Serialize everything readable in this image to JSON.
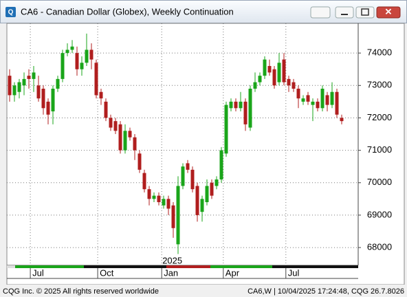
{
  "window_title": "CA6 - Canadian Dollar (Globex), Weekly Continuation",
  "chart_data": {
    "type": "candlestick",
    "categories": [
      null,
      null,
      null,
      null,
      null,
      null,
      null,
      null,
      null,
      null,
      null,
      null,
      null,
      null,
      null,
      null,
      null,
      null,
      null,
      null,
      null,
      null,
      null,
      null,
      null,
      null,
      null,
      null,
      null,
      null,
      null,
      null,
      null,
      null,
      null,
      null,
      null,
      null,
      null,
      null,
      null,
      null,
      null,
      null,
      null,
      null,
      null,
      null,
      null,
      null,
      null,
      null,
      null,
      null,
      null,
      null,
      null,
      null,
      null,
      null,
      null,
      null,
      null,
      null,
      null,
      null,
      null,
      null,
      null,
      null
    ],
    "open": [
      73300,
      72700,
      72800,
      73000,
      73300,
      73200,
      73000,
      72900,
      72500,
      72200,
      72900,
      73200,
      74000,
      74100,
      74000,
      73500,
      73700,
      74100,
      73700,
      72800,
      72500,
      72000,
      71900,
      71800,
      71000,
      71600,
      71400,
      70900,
      70300,
      69800,
      69500,
      69600,
      69300,
      69500,
      69300,
      68100,
      69900,
      70600,
      70400,
      69900,
      69100,
      69400,
      70000,
      69900,
      70100,
      70900,
      72300,
      72500,
      72300,
      72500,
      71700,
      72900,
      73100,
      73300,
      73600,
      73500,
      73100,
      73800,
      73200,
      73100,
      72900,
      72500,
      72700,
      72400,
      72500,
      72300,
      72700,
      72400,
      72800,
      72000
    ],
    "high": [
      73500,
      73100,
      73200,
      73400,
      73500,
      73600,
      73300,
      73000,
      72600,
      73000,
      73300,
      74100,
      74300,
      74400,
      74200,
      73900,
      74600,
      74300,
      73800,
      72900,
      72600,
      72100,
      72000,
      71900,
      71800,
      71700,
      71500,
      71000,
      70400,
      69900,
      69700,
      69700,
      69600,
      69600,
      69400,
      70200,
      70600,
      70700,
      70500,
      70000,
      69600,
      70100,
      70100,
      70200,
      71100,
      72500,
      72600,
      72600,
      72800,
      72600,
      73000,
      73400,
      73400,
      73900,
      73800,
      73600,
      74000,
      74000,
      73300,
      73200,
      73000,
      72700,
      72800,
      72600,
      72600,
      73000,
      72800,
      73100,
      72900,
      72100
    ],
    "low": [
      72500,
      72500,
      72600,
      72700,
      72900,
      72800,
      72500,
      72100,
      71800,
      71800,
      72800,
      73100,
      73900,
      74000,
      73300,
      73300,
      73600,
      73500,
      72600,
      72400,
      71900,
      71600,
      71500,
      70900,
      70900,
      71300,
      70700,
      70300,
      69700,
      69300,
      69400,
      69300,
      69200,
      69000,
      68300,
      67800,
      69800,
      70300,
      69700,
      68800,
      68800,
      69300,
      69500,
      69800,
      70000,
      70800,
      72200,
      72200,
      72200,
      71600,
      71600,
      72800,
      73000,
      73200,
      73300,
      72900,
      73000,
      73000,
      72800,
      72800,
      72300,
      72400,
      72400,
      71900,
      72200,
      72200,
      72200,
      72300,
      72000,
      71800
    ],
    "close": [
      72700,
      73000,
      73100,
      73200,
      73200,
      73400,
      72600,
      72300,
      72100,
      72900,
      73200,
      74000,
      74100,
      74200,
      73500,
      73700,
      74100,
      73800,
      72700,
      72600,
      72000,
      71700,
      71600,
      71000,
      71600,
      71400,
      71000,
      70400,
      69800,
      69500,
      69600,
      69400,
      69500,
      69200,
      68600,
      69900,
      70500,
      70400,
      69800,
      69000,
      69500,
      69900,
      69600,
      70100,
      71000,
      72400,
      72500,
      72300,
      72500,
      71800,
      72900,
      73100,
      73300,
      73800,
      73400,
      73000,
      73700,
      73100,
      73000,
      72900,
      72600,
      72600,
      72500,
      72500,
      72300,
      72900,
      72400,
      72800,
      72100,
      71900
    ],
    "up_color": "#1aa51a",
    "down_color": "#b01e1e",
    "ylim": [
      67450,
      74915
    ],
    "yticks": [
      68000,
      69000,
      70000,
      71000,
      72000,
      73000,
      74000
    ],
    "xticks": [
      {
        "value": 4.3,
        "label": "Jul"
      },
      {
        "value": 18.3,
        "label": "Oct"
      },
      {
        "value": 31.6,
        "label": "Jan"
      },
      {
        "value": 44.4,
        "label": "Apr"
      },
      {
        "value": 57.4,
        "label": "Jul"
      }
    ],
    "year_label": "2025",
    "grid": true
  },
  "footer": {
    "left": "CQG Inc. © 2025 All rights reserved worldwide",
    "right": "CA6,W | 10/04/2025 17:24:48, CQG 26.7.8026"
  }
}
